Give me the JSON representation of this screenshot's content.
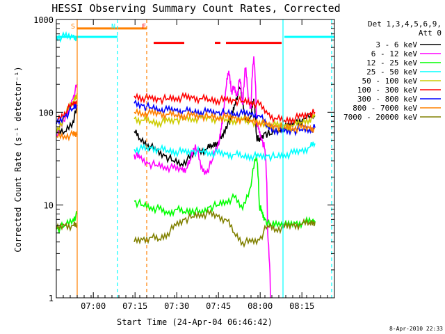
{
  "chart_data": {
    "type": "line",
    "title": "HESSI Observing Summary Count Rates, Corrected",
    "xlabel": "Start Time (24-Apr-04 06:46:42)",
    "ylabel": "Corrected Count Rate (s⁻¹ detector⁻¹)",
    "yscale": "log",
    "xlim": [
      0,
      100
    ],
    "ylim": [
      1,
      1000
    ],
    "x_ticks": [
      {
        "x": 13.3,
        "label": "07:00"
      },
      {
        "x": 28.3,
        "label": "07:15"
      },
      {
        "x": 43.3,
        "label": "07:30"
      },
      {
        "x": 58.3,
        "label": "07:45"
      },
      {
        "x": 73.3,
        "label": "08:00"
      },
      {
        "x": 88.3,
        "label": "08:15"
      }
    ],
    "y_ticks": [
      {
        "y": 1,
        "label": "1"
      },
      {
        "y": 10,
        "label": "10"
      },
      {
        "y": 100,
        "label": "100"
      },
      {
        "y": 1000,
        "label": "1000"
      }
    ],
    "legend_header": [
      "Det 1,3,4,5,6,9,",
      "Att 0"
    ],
    "legend_placement": "right",
    "series": [
      {
        "name": "3 - 6 keV",
        "color": "#000000",
        "x": [
          0,
          3,
          6,
          7.5,
          28,
          30,
          33,
          36,
          39,
          42,
          45,
          48,
          51,
          54,
          56,
          58,
          60,
          62,
          63,
          64,
          66,
          68,
          70,
          71,
          72,
          73,
          75,
          77,
          80,
          83,
          86,
          89,
          93
        ],
        "y": [
          60,
          62,
          80,
          110,
          62,
          52,
          45,
          38,
          34,
          30,
          28,
          32,
          38,
          40,
          44,
          48,
          55,
          80,
          85,
          120,
          180,
          80,
          90,
          140,
          55,
          48,
          60,
          58,
          66,
          70,
          78,
          85,
          92
        ]
      },
      {
        "name": "6 - 12 keV",
        "color": "#ff00ff",
        "x": [
          0,
          3,
          6,
          7.5,
          28,
          30,
          33,
          36,
          39,
          42,
          45,
          47,
          48,
          50,
          52,
          54,
          56,
          58,
          59,
          60,
          61,
          62,
          63,
          64,
          65,
          66,
          67,
          68,
          69,
          70,
          71,
          72,
          73,
          74,
          75,
          76,
          77
        ],
        "y": [
          58,
          80,
          140,
          200,
          35,
          32,
          28,
          27,
          26,
          25,
          24,
          25,
          30,
          45,
          25,
          22,
          30,
          45,
          55,
          90,
          180,
          280,
          170,
          180,
          150,
          230,
          120,
          300,
          140,
          110,
          400,
          80,
          60,
          50,
          40,
          5,
          1
        ]
      },
      {
        "name": "12 - 25 keV",
        "color": "#00ff00",
        "x": [
          0,
          3,
          6,
          7.5,
          28,
          31,
          34,
          37,
          40,
          43,
          46,
          49,
          52,
          55,
          58,
          61,
          64,
          67,
          70,
          72,
          73,
          74,
          75,
          77,
          80,
          83,
          86,
          89,
          92,
          93
        ],
        "y": [
          5.5,
          6,
          7,
          8,
          11,
          10,
          9.5,
          9,
          8,
          9,
          8.5,
          9,
          8,
          9.5,
          10,
          11,
          12,
          9,
          16,
          35,
          10,
          8,
          7,
          6,
          6.5,
          6,
          6.3,
          6.5,
          6.8,
          6.7
        ]
      },
      {
        "name": "25 - 50 keV",
        "color": "#00ffff",
        "x": [
          0,
          3,
          6,
          7.5,
          28,
          31,
          34,
          37,
          40,
          43,
          46,
          49,
          52,
          55,
          58,
          61,
          64,
          67,
          70,
          73,
          76,
          79,
          82,
          85,
          88,
          91,
          93
        ],
        "y": [
          650,
          650,
          650,
          650,
          40,
          40,
          41,
          40,
          39,
          38,
          37,
          38,
          38,
          37,
          36,
          35,
          35,
          34,
          34,
          33,
          34,
          33,
          35,
          36,
          38,
          42,
          46
        ]
      },
      {
        "name": "50 - 100 keV",
        "color": "#cccc00",
        "x": [
          0,
          3,
          6,
          7.5,
          28,
          31,
          34,
          37,
          40,
          43,
          46,
          49,
          52,
          55,
          58,
          61,
          64,
          67,
          70,
          73,
          76,
          79,
          82,
          85,
          88,
          91,
          93
        ],
        "y": [
          60,
          90,
          130,
          160,
          85,
          82,
          80,
          78,
          80,
          83,
          85,
          86,
          87,
          86,
          85,
          84,
          83,
          82,
          81,
          75,
          74,
          72,
          70,
          72,
          78,
          85,
          90
        ]
      },
      {
        "name": "100 - 300 keV",
        "color": "#ff0000",
        "x": [
          0,
          3,
          6,
          7.5,
          28,
          31,
          34,
          37,
          40,
          43,
          46,
          49,
          52,
          55,
          58,
          61,
          64,
          67,
          70,
          73,
          76,
          79,
          82,
          85,
          88,
          91,
          93
        ],
        "y": [
          80,
          100,
          120,
          130,
          150,
          145,
          140,
          138,
          140,
          143,
          145,
          142,
          140,
          138,
          136,
          135,
          134,
          132,
          130,
          120,
          95,
          85,
          82,
          85,
          90,
          95,
          100
        ]
      },
      {
        "name": "300 - 800 keV",
        "color": "#0000ff",
        "x": [
          0,
          3,
          6,
          7.5,
          28,
          31,
          34,
          37,
          40,
          43,
          46,
          49,
          52,
          55,
          58,
          61,
          64,
          67,
          70,
          73,
          76,
          79,
          82,
          85,
          88,
          91,
          93
        ],
        "y": [
          75,
          90,
          110,
          120,
          125,
          118,
          112,
          108,
          105,
          104,
          103,
          102,
          101,
          100,
          99,
          98,
          97,
          96,
          95,
          92,
          70,
          65,
          62,
          64,
          65,
          66,
          68
        ]
      },
      {
        "name": "800 - 7000 keV",
        "color": "#ff8000",
        "x": [
          0,
          3,
          6,
          7.5,
          28,
          31,
          34,
          37,
          40,
          43,
          46,
          49,
          52,
          55,
          58,
          61,
          64,
          67,
          70,
          73,
          76,
          79,
          82,
          85,
          88,
          91,
          93
        ],
        "y": [
          55,
          56,
          57,
          57,
          100,
          98,
          97,
          96,
          95,
          94,
          93,
          92,
          91,
          90,
          89,
          88,
          86,
          84,
          82,
          80,
          72,
          70,
          69,
          68,
          68,
          67,
          67
        ]
      },
      {
        "name": "7000 - 20000 keV",
        "color": "#808000",
        "x": [
          0,
          3,
          6,
          7.5,
          28,
          31,
          34,
          37,
          40,
          43,
          46,
          49,
          52,
          55,
          58,
          61,
          64,
          67,
          70,
          73,
          76,
          79,
          82,
          85,
          88,
          91,
          93
        ],
        "y": [
          5.5,
          6,
          6,
          6,
          4,
          4.2,
          4.5,
          4.3,
          5,
          6,
          7,
          7.5,
          8,
          8,
          7.5,
          7,
          5,
          4,
          4,
          4.2,
          6,
          5.5,
          5.8,
          6,
          6.2,
          6.5,
          6.6
        ]
      }
    ],
    "annotations": [
      {
        "label": "S",
        "x": 7.5,
        "color": "#ff8000"
      },
      {
        "label": "N",
        "x": 22,
        "color": "#00ffff"
      },
      {
        "label": "F",
        "x": 33,
        "color": "#ff0000"
      }
    ],
    "bars": [
      {
        "color": "#ff8000",
        "x0": 7.5,
        "x1": 32.5,
        "y": 800
      },
      {
        "color": "#00ffff",
        "x0": 0,
        "x1": 22,
        "y": 650
      },
      {
        "color": "#00ffff",
        "x0": 82,
        "x1": 100,
        "y": 650
      },
      {
        "color": "#ff0000",
        "x0": 35,
        "x1": 46,
        "y": 560
      },
      {
        "color": "#ff0000",
        "x0": 57,
        "x1": 59,
        "y": 560
      },
      {
        "color": "#ff0000",
        "x0": 61,
        "x1": 81,
        "y": 560
      }
    ],
    "vlines": [
      {
        "x": 7.5,
        "color": "#ff8000",
        "style": "solid"
      },
      {
        "x": 22,
        "color": "#00ffff",
        "style": "dashed"
      },
      {
        "x": 32.5,
        "color": "#ff8000",
        "style": "dashed"
      },
      {
        "x": 81.5,
        "color": "#00ffff",
        "style": "solid"
      },
      {
        "x": 99,
        "color": "#00ffff",
        "style": "dashed"
      }
    ],
    "footer": "8-Apr-2010 22:33"
  }
}
